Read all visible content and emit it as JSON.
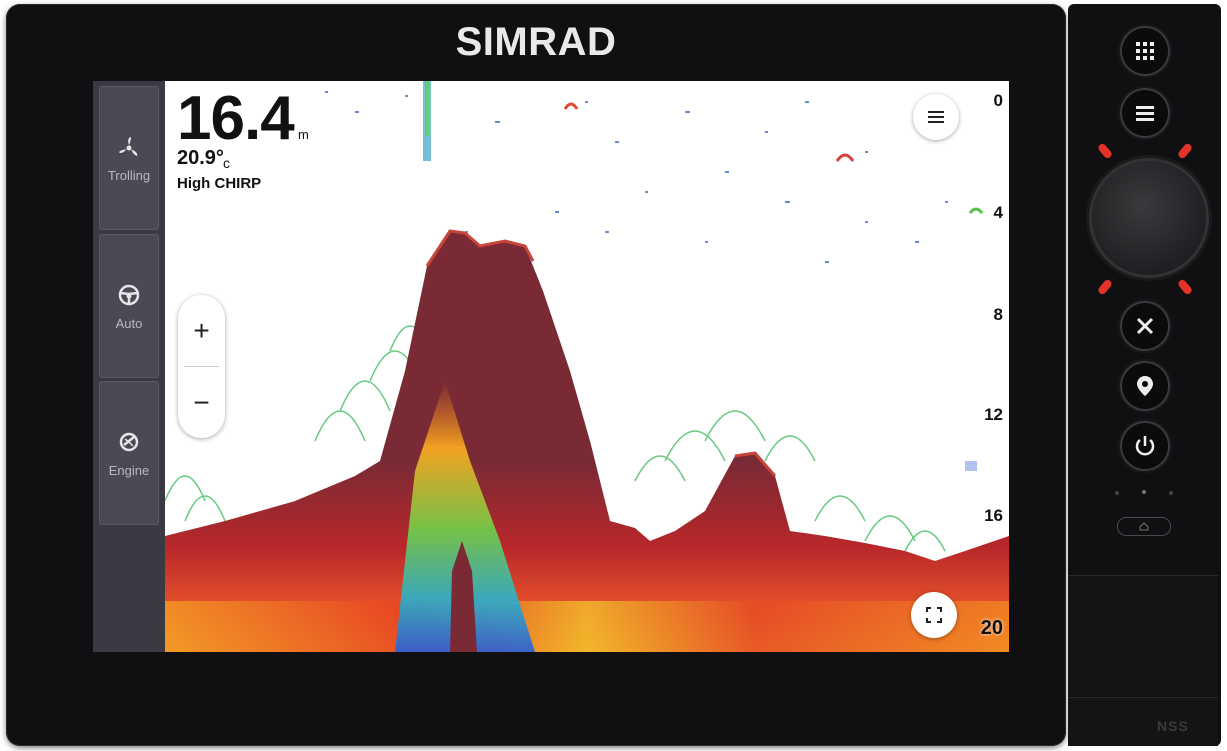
{
  "brand": "SIMRAD",
  "model_badge": "NSS",
  "sidebar": {
    "items": [
      {
        "label": "Trolling",
        "icon": "propeller-icon"
      },
      {
        "label": "Auto",
        "icon": "steering-wheel-icon"
      },
      {
        "label": "Engine",
        "icon": "engine-icon"
      }
    ]
  },
  "readout": {
    "depth": "16.4",
    "depth_unit": "m",
    "water_temp": "20.9°",
    "temp_unit": "c",
    "sonar_mode": "High CHIRP"
  },
  "zoom": {
    "in_label": "+",
    "out_label": "−"
  },
  "depth_scale": [
    "0",
    "4",
    "8",
    "12",
    "16",
    "20"
  ],
  "hardware_buttons": [
    "apps-grid-icon",
    "menu-icon",
    "close-icon",
    "waypoint-icon",
    "power-icon"
  ],
  "colors": {
    "bottom_return": "#7a2a35",
    "bezel": "#101012",
    "sidebar": "#3a3a44",
    "led": "#e2332b"
  }
}
